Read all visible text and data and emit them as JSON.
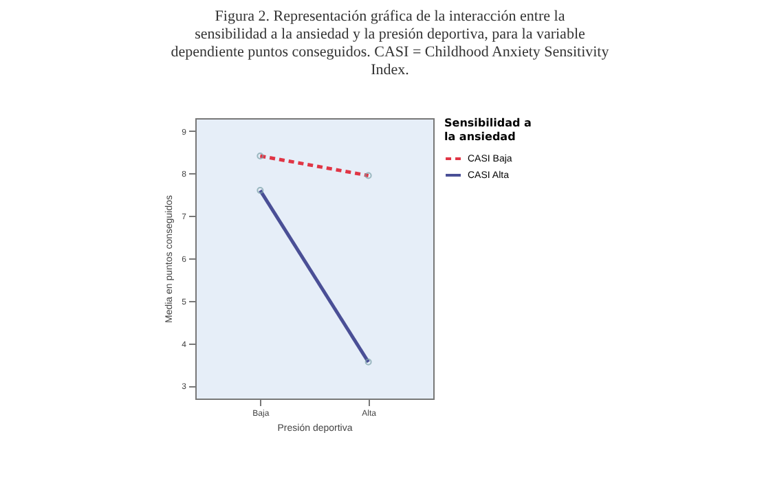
{
  "chart_data": {
    "type": "line",
    "title": "Figura 2. Representación gráfica de la interacción entre la sensibilidad a la ansiedad y la presión deportiva, para la variable dependiente puntos conseguidos. CASI = Childhood Anxiety Sensitivity Index.",
    "xlabel": "Presión deportiva",
    "ylabel": "Media en puntos conseguidos",
    "legend_title": "Sensibilidad a la ansiedad",
    "categories": [
      "Baja",
      "Alta"
    ],
    "series": [
      {
        "name": "CASI Baja",
        "color": "#e03545",
        "values": [
          8.41,
          7.95
        ],
        "line_style": "dashed"
      },
      {
        "name": "CASI Alta",
        "color": "#4a4f96",
        "values": [
          7.6,
          3.56
        ],
        "line_style": "solid"
      }
    ],
    "ylim": [
      2.7,
      9.3
    ],
    "yticks": [
      3,
      4,
      5,
      6,
      7,
      8,
      9
    ],
    "marker": "circle",
    "legend": "top right",
    "grid": false
  }
}
